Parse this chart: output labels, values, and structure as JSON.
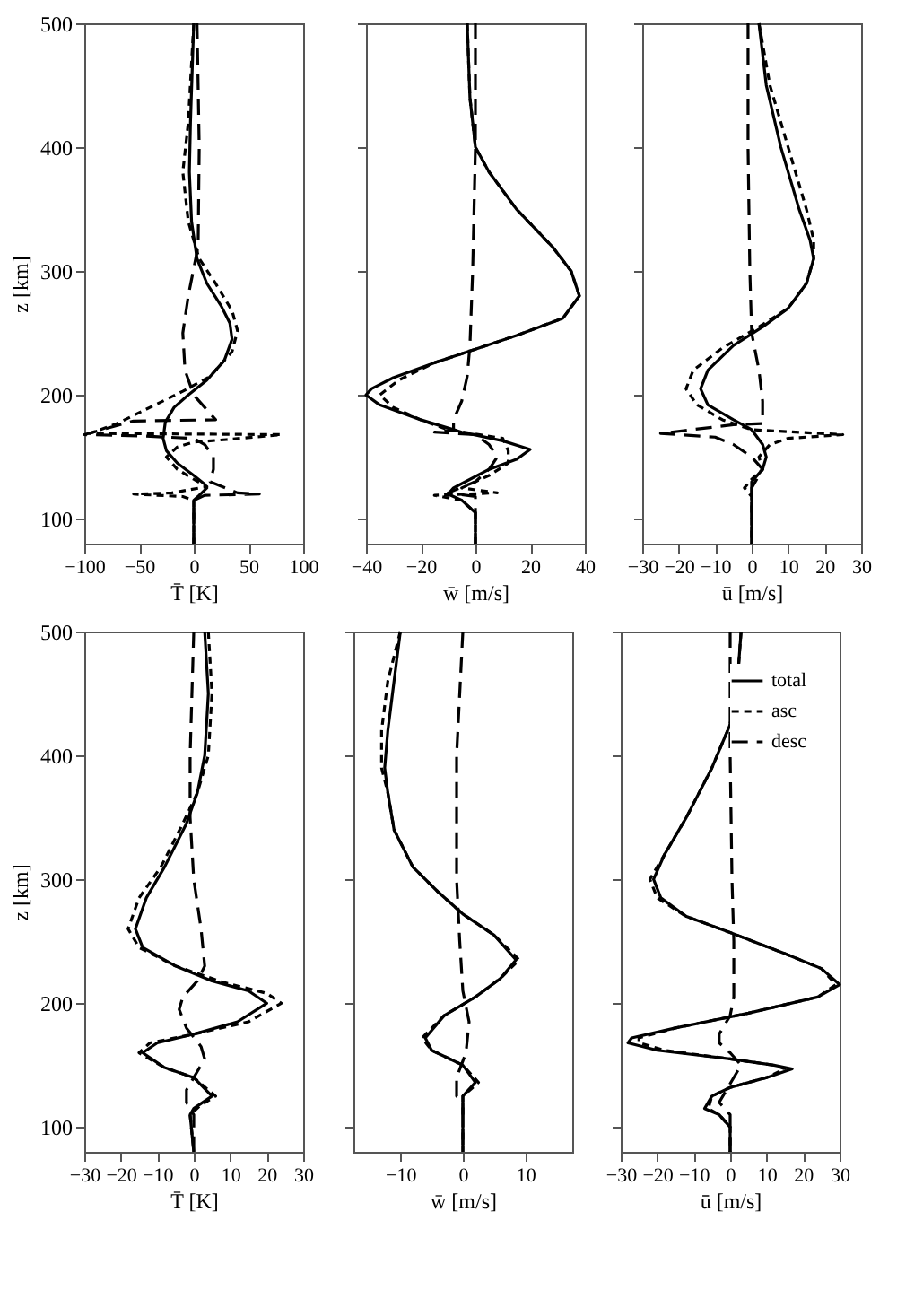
{
  "chart_data": [
    {
      "type": "line",
      "xlabel": "T̄ [K]",
      "ylabel": "z [km]",
      "xlim": [
        -100,
        100
      ],
      "xticks": [
        -100,
        -50,
        0,
        50,
        100
      ],
      "ylim": [
        80,
        500
      ],
      "yticks": [
        100,
        200,
        300,
        400,
        500
      ],
      "series": [
        {
          "color": "#000000",
          "line_style": "solid",
          "x": [
            0,
            -3,
            -4,
            -2,
            3,
            12,
            25,
            33,
            35,
            28,
            12,
            -5,
            -18,
            -26,
            -28,
            -25,
            -15,
            0,
            10,
            12,
            5,
            0,
            0
          ],
          "values": [
            500,
            420,
            380,
            340,
            310,
            290,
            272,
            258,
            245,
            228,
            212,
            200,
            190,
            178,
            165,
            155,
            145,
            135,
            128,
            125,
            119,
            115,
            80
          ]
        },
        {
          "color": "#000000",
          "line_style": "dotted",
          "x": [
            0,
            -5,
            -10,
            -5,
            5,
            20,
            35,
            40,
            35,
            15,
            -10,
            -40,
            -70,
            -95,
            80,
            30,
            0,
            -15,
            -25,
            -15,
            0,
            12,
            -20,
            -55,
            -10,
            0,
            0
          ],
          "values": [
            500,
            420,
            380,
            340,
            310,
            290,
            268,
            252,
            235,
            215,
            203,
            190,
            177,
            169,
            168,
            164,
            162,
            158,
            150,
            140,
            132,
            126,
            121,
            120,
            118,
            115,
            80
          ]
        },
        {
          "color": "#000000",
          "line_style": "dashed",
          "x": [
            3,
            5,
            4,
            -5,
            -10,
            -8,
            0,
            10,
            20,
            -55,
            -100,
            -50,
            0,
            10,
            18,
            18,
            15,
            40,
            60,
            10,
            0,
            0
          ],
          "values": [
            500,
            400,
            320,
            280,
            250,
            220,
            200,
            190,
            180,
            179,
            168,
            167,
            165,
            160,
            150,
            140,
            130,
            121,
            120,
            119,
            115,
            80
          ]
        }
      ]
    },
    {
      "type": "line",
      "xlabel": "w̄ [m/s]",
      "xlim": [
        -40,
        40
      ],
      "xticks": [
        -40,
        -20,
        0,
        20,
        40
      ],
      "ylim": [
        80,
        500
      ],
      "yticks": [
        100,
        200,
        300,
        400,
        500
      ],
      "tick_labels": "x",
      "series": [
        {
          "color": "#000000",
          "line_style": "solid",
          "x": [
            -3,
            -2,
            0,
            5,
            15,
            28,
            35,
            38,
            32,
            15,
            0,
            -15,
            -30,
            -38,
            -40,
            -35,
            -20,
            -5,
            10,
            20,
            15,
            5,
            -8,
            -10,
            -5,
            0,
            0
          ],
          "values": [
            500,
            440,
            400,
            380,
            350,
            320,
            300,
            280,
            262,
            248,
            237,
            226,
            214,
            205,
            200,
            192,
            180,
            170,
            163,
            156,
            148,
            140,
            125,
            120,
            115,
            105,
            80
          ]
        },
        {
          "color": "#000000",
          "line_style": "dotted",
          "x": [
            -3,
            -2,
            0,
            5,
            15,
            28,
            35,
            38,
            32,
            15,
            0,
            -15,
            -28,
            -35,
            -30,
            -20,
            -10,
            10,
            12,
            12,
            5,
            -5,
            8,
            -15,
            -5,
            0,
            0
          ],
          "values": [
            500,
            440,
            400,
            380,
            350,
            320,
            300,
            280,
            262,
            248,
            237,
            226,
            212,
            200,
            190,
            180,
            172,
            165,
            155,
            145,
            135,
            125,
            121,
            119,
            115,
            105,
            80
          ]
        },
        {
          "color": "#000000",
          "line_style": "dashed",
          "x": [
            0,
            0,
            -1,
            -2,
            -3,
            -5,
            -8,
            -8,
            -15,
            0,
            5,
            8,
            5,
            0,
            -10,
            0,
            0,
            0
          ],
          "values": [
            500,
            400,
            300,
            240,
            215,
            195,
            180,
            172,
            170,
            168,
            160,
            150,
            140,
            130,
            121,
            118,
            110,
            80
          ]
        }
      ]
    },
    {
      "type": "line",
      "xlabel": "ū [m/s]",
      "xlim": [
        -30,
        30
      ],
      "xticks": [
        -30,
        -20,
        -10,
        0,
        10,
        20,
        30
      ],
      "ylim": [
        80,
        500
      ],
      "yticks": [
        100,
        200,
        300,
        400,
        500
      ],
      "tick_labels": "x",
      "series": [
        {
          "color": "#000000",
          "line_style": "solid",
          "x": [
            2,
            4,
            8,
            13,
            16,
            17,
            15,
            10,
            3,
            -5,
            -12,
            -14,
            -12,
            -5,
            0,
            3,
            4,
            3,
            0,
            0,
            0
          ],
          "values": [
            500,
            450,
            400,
            350,
            325,
            310,
            290,
            270,
            255,
            240,
            220,
            205,
            192,
            180,
            172,
            160,
            150,
            140,
            130,
            120,
            80
          ]
        },
        {
          "color": "#000000",
          "line_style": "dotted",
          "x": [
            2,
            5,
            10,
            15,
            17,
            17,
            15,
            10,
            2,
            -8,
            -16,
            -18,
            -15,
            -8,
            0,
            25,
            10,
            5,
            2,
            3,
            0,
            -2,
            0,
            0
          ],
          "values": [
            500,
            450,
            400,
            350,
            325,
            310,
            290,
            270,
            255,
            238,
            220,
            205,
            192,
            180,
            172,
            168,
            165,
            160,
            150,
            140,
            132,
            125,
            118,
            80
          ]
        },
        {
          "color": "#000000",
          "line_style": "dashed",
          "x": [
            -1,
            -1,
            -0.5,
            0,
            2,
            3,
            3,
            -5,
            -25,
            -10,
            -5,
            0,
            3,
            0,
            0
          ],
          "values": [
            500,
            400,
            300,
            250,
            220,
            195,
            177,
            176,
            169,
            166,
            160,
            150,
            140,
            125,
            80
          ]
        }
      ]
    },
    {
      "type": "line",
      "xlabel": "T̄ [K]",
      "ylabel": "z [km]",
      "xlim": [
        -30,
        30
      ],
      "xticks": [
        -30,
        -20,
        -10,
        0,
        10,
        20,
        30
      ],
      "ylim": [
        80,
        500
      ],
      "yticks": [
        100,
        200,
        300,
        400,
        500
      ],
      "series": [
        {
          "color": "#000000",
          "line_style": "solid",
          "x": [
            3,
            4,
            3,
            1,
            -2,
            -8,
            -13,
            -16,
            -14,
            -5,
            5,
            15,
            20,
            12,
            0,
            -10,
            -14,
            -8,
            0,
            5,
            0,
            -1,
            0
          ],
          "values": [
            500,
            450,
            400,
            370,
            345,
            310,
            285,
            260,
            245,
            230,
            218,
            210,
            200,
            185,
            175,
            168,
            160,
            148,
            140,
            125,
            115,
            110,
            80
          ]
        },
        {
          "color": "#000000",
          "line_style": "dotted",
          "x": [
            4,
            5,
            4,
            1,
            -3,
            -9,
            -15,
            -18,
            -15,
            -5,
            8,
            20,
            24,
            15,
            0,
            -12,
            -15,
            -8,
            0,
            6,
            2,
            -1,
            0
          ],
          "values": [
            500,
            450,
            400,
            370,
            345,
            310,
            285,
            260,
            245,
            230,
            217,
            208,
            200,
            185,
            175,
            168,
            160,
            148,
            140,
            125,
            118,
            110,
            80
          ]
        },
        {
          "color": "#000000",
          "line_style": "dashed",
          "x": [
            0,
            -1,
            -1,
            0,
            2,
            3,
            1,
            -3,
            -4,
            -2,
            2,
            3,
            1,
            -2,
            -2,
            0,
            0
          ],
          "values": [
            500,
            400,
            350,
            300,
            260,
            230,
            218,
            205,
            195,
            180,
            165,
            155,
            145,
            130,
            120,
            110,
            80
          ]
        }
      ]
    },
    {
      "type": "line",
      "xlabel": "w̄ [m/s]",
      "xlim": [
        -17.5,
        17.5
      ],
      "xticks": [
        -10,
        0,
        10
      ],
      "ylim": [
        80,
        500
      ],
      "yticks": [
        100,
        200,
        300,
        400,
        500
      ],
      "tick_labels": "x",
      "series": [
        {
          "color": "#000000",
          "line_style": "solid",
          "x": [
            -10,
            -11,
            -12,
            -12.5,
            -12,
            -11,
            -8,
            -4,
            0,
            5,
            8.5,
            6,
            2,
            -3,
            -6,
            -5,
            0,
            2,
            0,
            0,
            0
          ],
          "values": [
            500,
            460,
            420,
            390,
            370,
            340,
            310,
            290,
            272,
            255,
            235,
            220,
            205,
            190,
            172,
            162,
            150,
            136,
            125,
            115,
            80
          ]
        },
        {
          "color": "#000000",
          "line_style": "dotted",
          "x": [
            -10,
            -12,
            -13,
            -13,
            -12,
            -11,
            -8,
            -4,
            0,
            5,
            9,
            6,
            2,
            -3,
            -6.5,
            -5,
            0,
            2.5,
            0,
            0,
            0
          ],
          "values": [
            500,
            460,
            420,
            390,
            370,
            340,
            310,
            290,
            272,
            255,
            235,
            220,
            205,
            190,
            172,
            162,
            150,
            136,
            125,
            115,
            80
          ]
        },
        {
          "color": "#000000",
          "line_style": "dashed",
          "x": [
            0,
            -0.5,
            -1,
            -1,
            -0.5,
            0,
            1,
            0.5,
            -1,
            -1,
            0,
            0
          ],
          "values": [
            500,
            450,
            400,
            300,
            250,
            210,
            185,
            160,
            140,
            125,
            120,
            80
          ]
        }
      ]
    },
    {
      "type": "line",
      "xlabel": "ū [m/s]",
      "xlim": [
        -30,
        30
      ],
      "xticks": [
        -30,
        -20,
        -10,
        0,
        10,
        20,
        30
      ],
      "ylim": [
        80,
        500
      ],
      "yticks": [
        100,
        200,
        300,
        400,
        500
      ],
      "tick_labels": "x",
      "legend": "top right",
      "series": [
        {
          "name": "total",
          "color": "#000000",
          "line_style": "solid",
          "x": [
            3,
            2,
            0,
            -5,
            -12,
            -18,
            -21,
            -19,
            -12,
            0,
            15,
            25,
            30,
            24,
            5,
            -15,
            -27,
            -28,
            -20,
            0,
            12,
            17,
            10,
            0,
            -5,
            -7,
            -3,
            0,
            0
          ],
          "values": [
            500,
            460,
            425,
            390,
            350,
            320,
            300,
            285,
            270,
            257,
            240,
            228,
            215,
            205,
            192,
            180,
            172,
            168,
            162,
            155,
            150,
            147,
            140,
            132,
            125,
            115,
            110,
            100,
            80
          ]
        },
        {
          "name": "asc",
          "color": "#000000",
          "line_style": "dotted",
          "x": [
            3,
            2,
            0,
            -5,
            -12,
            -18,
            -22,
            -20,
            -12,
            0,
            15,
            25,
            29,
            24,
            5,
            -15,
            -25,
            -25,
            -18,
            0,
            12,
            15,
            10,
            0,
            -5,
            -6,
            -3,
            0,
            0
          ],
          "values": [
            500,
            460,
            425,
            390,
            350,
            320,
            300,
            285,
            270,
            257,
            240,
            228,
            215,
            205,
            192,
            180,
            172,
            168,
            162,
            155,
            150,
            147,
            140,
            132,
            125,
            115,
            110,
            100,
            80
          ]
        },
        {
          "name": "desc",
          "color": "#000000",
          "line_style": "dashed",
          "x": [
            0,
            0,
            0.5,
            1,
            1,
            0,
            -3,
            -3,
            0,
            3,
            0,
            -3,
            0,
            0
          ],
          "values": [
            500,
            400,
            300,
            250,
            205,
            190,
            175,
            168,
            160,
            150,
            135,
            120,
            110,
            80
          ]
        }
      ]
    }
  ]
}
